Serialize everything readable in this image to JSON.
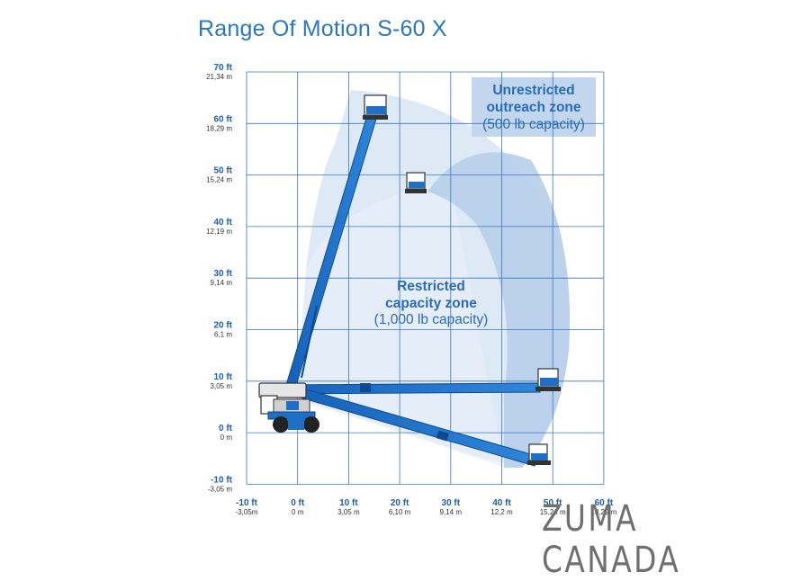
{
  "title": "Range Of Motion S-60 X",
  "y_axis": [
    {
      "ft": "70 ft",
      "m": "21,34 m",
      "value": 70
    },
    {
      "ft": "60 ft",
      "m": "18,29 m",
      "value": 60
    },
    {
      "ft": "50 ft",
      "m": "15,24 m",
      "value": 50
    },
    {
      "ft": "40 ft",
      "m": "12,19 m",
      "value": 40
    },
    {
      "ft": "30 ft",
      "m": "9,14 m",
      "value": 30
    },
    {
      "ft": "20 ft",
      "m": "6,1 m",
      "value": 20
    },
    {
      "ft": "10 ft",
      "m": "3,05 m",
      "value": 10
    },
    {
      "ft": "0 ft",
      "m": "0 m",
      "value": 0
    },
    {
      "ft": "-10 ft",
      "m": "-3,05 m",
      "value": -10
    }
  ],
  "x_axis": [
    {
      "ft": "-10 ft",
      "m": "-3,05m",
      "value": -10
    },
    {
      "ft": "0 ft",
      "m": "0 m",
      "value": 0
    },
    {
      "ft": "10 ft",
      "m": "3,05 m",
      "value": 10
    },
    {
      "ft": "20 ft",
      "m": "6,10 m",
      "value": 20
    },
    {
      "ft": "30 ft",
      "m": "9,14 m",
      "value": 30
    },
    {
      "ft": "40 ft",
      "m": "12,2 m",
      "value": 40
    },
    {
      "ft": "50 ft",
      "m": "15,24 m",
      "value": 50
    },
    {
      "ft": "60 ft",
      "m": "18,29 m",
      "value": 60
    }
  ],
  "zones": {
    "unrestricted": {
      "line1": "Unrestricted",
      "line2": "outreach zone",
      "capacity": "(500 lb capacity)"
    },
    "restricted": {
      "line1": "Restricted",
      "line2": "capacity zone",
      "capacity": "(1,000 lb capacity)"
    }
  },
  "colors": {
    "boom": "#1e6fc6",
    "grid": "#3a78c0",
    "zone_light": "#dbe7f4",
    "zone_dark": "#b7cfea",
    "title": "#2a78b8"
  },
  "watermark": "ZUMA CANADA"
}
